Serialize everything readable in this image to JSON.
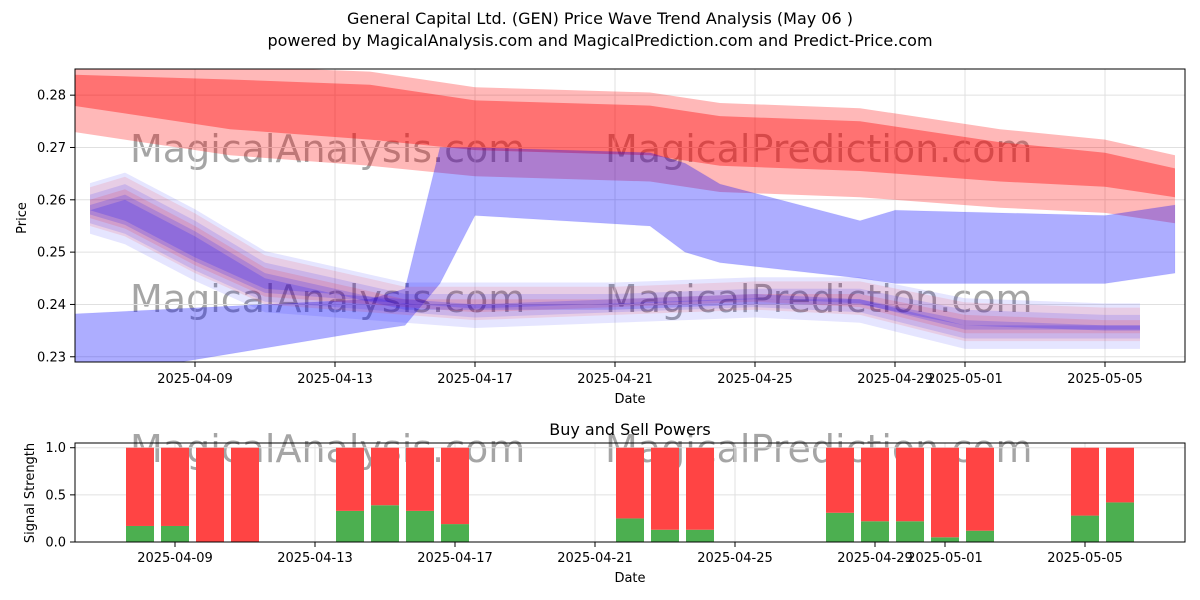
{
  "header": {
    "title": "General Capital Ltd. (GEN) Price Wave Trend Analysis (May 06 )",
    "subtitle": "powered by MagicalAnalysis.com and MagicalPrediction.com and Predict-Price.com"
  },
  "watermarks": {
    "left": "MagicalAnalysis.com",
    "right": "MagicalPrediction.com"
  },
  "colors": {
    "red_band": "#ff0000",
    "blue_band": "#0000ff",
    "buy": "#4caf50",
    "sell": "#ff4444",
    "grid": "#e0e0e0"
  },
  "chart_data": [
    {
      "type": "area",
      "title": "",
      "xlabel": "Date",
      "ylabel": "Price",
      "ylim": [
        0.229,
        0.285
      ],
      "xlim": [
        "2025-04-05",
        "2025-05-07"
      ],
      "x_ticks": [
        "2025-04-09",
        "2025-04-13",
        "2025-04-17",
        "2025-04-21",
        "2025-04-25",
        "2025-04-29",
        "2025-05-01",
        "2025-05-05"
      ],
      "y_ticks": [
        0.23,
        0.24,
        0.25,
        0.26,
        0.27,
        0.28
      ],
      "grid": true,
      "series": [
        {
          "band": "red",
          "x": [
            "2025-04-05",
            "2025-04-10",
            "2025-04-14",
            "2025-04-17",
            "2025-04-22",
            "2025-04-24",
            "2025-04-28",
            "2025-05-02",
            "2025-05-05",
            "2025-05-07"
          ],
          "upper": [
            0.285,
            0.284,
            0.283,
            0.28,
            0.279,
            0.277,
            0.276,
            0.272,
            0.27,
            0.267
          ],
          "lower": [
            0.277,
            0.272,
            0.27,
            0.268,
            0.267,
            0.265,
            0.264,
            0.262,
            0.261,
            0.259
          ]
        },
        {
          "band": "blue-upper",
          "x": [
            "2025-04-05",
            "2025-04-14",
            "2025-04-15",
            "2025-04-16",
            "2025-04-17",
            "2025-04-22",
            "2025-04-23",
            "2025-04-24",
            "2025-04-28",
            "2025-04-29",
            "2025-05-05",
            "2025-05-07"
          ],
          "upper": [
            0.238,
            0.241,
            0.243,
            0.27,
            0.27,
            0.269,
            0.267,
            0.263,
            0.256,
            0.258,
            0.257,
            0.259
          ],
          "lower": [
            0.225,
            0.235,
            0.236,
            0.244,
            0.257,
            0.255,
            0.25,
            0.248,
            0.245,
            0.244,
            0.244,
            0.246
          ]
        },
        {
          "band": "mixed-waves",
          "x": [
            "2025-04-06",
            "2025-04-07",
            "2025-04-09",
            "2025-04-11",
            "2025-04-13",
            "2025-04-15",
            "2025-04-17",
            "2025-04-21",
            "2025-04-25",
            "2025-04-28",
            "2025-05-01",
            "2025-05-05",
            "2025-05-06"
          ],
          "upper": [
            0.262,
            0.264,
            0.257,
            0.249,
            0.246,
            0.243,
            0.243,
            0.243,
            0.244,
            0.244,
            0.24,
            0.239,
            0.239
          ],
          "lower": [
            0.254,
            0.252,
            0.245,
            0.239,
            0.238,
            0.237,
            0.236,
            0.237,
            0.238,
            0.237,
            0.232,
            0.232,
            0.232
          ]
        }
      ]
    },
    {
      "type": "bar",
      "title": "Buy and Sell Powers",
      "xlabel": "Date",
      "ylabel": "Signal Strength",
      "ylim": [
        0,
        1.05
      ],
      "x_ticks": [
        "2025-04-09",
        "2025-04-13",
        "2025-04-17",
        "2025-04-21",
        "2025-04-25",
        "2025-04-29",
        "2025-05-01",
        "2025-05-05"
      ],
      "y_ticks": [
        0.0,
        0.5,
        1.0
      ],
      "y_tick_labels": [
        "0.0",
        "0.5",
        "1.0"
      ],
      "categories": [
        "2025-04-08",
        "2025-04-09",
        "2025-04-10",
        "2025-04-11",
        "2025-04-14",
        "2025-04-15",
        "2025-04-16",
        "2025-04-17",
        "2025-04-22",
        "2025-04-23",
        "2025-04-24",
        "2025-04-28",
        "2025-04-29",
        "2025-04-30",
        "2025-05-01",
        "2025-05-02",
        "2025-05-05",
        "2025-05-06"
      ],
      "series": [
        {
          "name": "Buy",
          "values": [
            0.17,
            0.17,
            0.0,
            0.0,
            0.33,
            0.39,
            0.33,
            0.19,
            0.25,
            0.13,
            0.13,
            0.31,
            0.22,
            0.22,
            0.05,
            0.12,
            0.28,
            0.42
          ]
        },
        {
          "name": "Sell",
          "values": [
            0.83,
            0.83,
            1.0,
            1.0,
            0.67,
            0.61,
            0.67,
            0.81,
            0.75,
            0.87,
            0.87,
            0.69,
            0.78,
            0.78,
            0.95,
            0.88,
            0.72,
            0.58
          ]
        }
      ]
    }
  ]
}
